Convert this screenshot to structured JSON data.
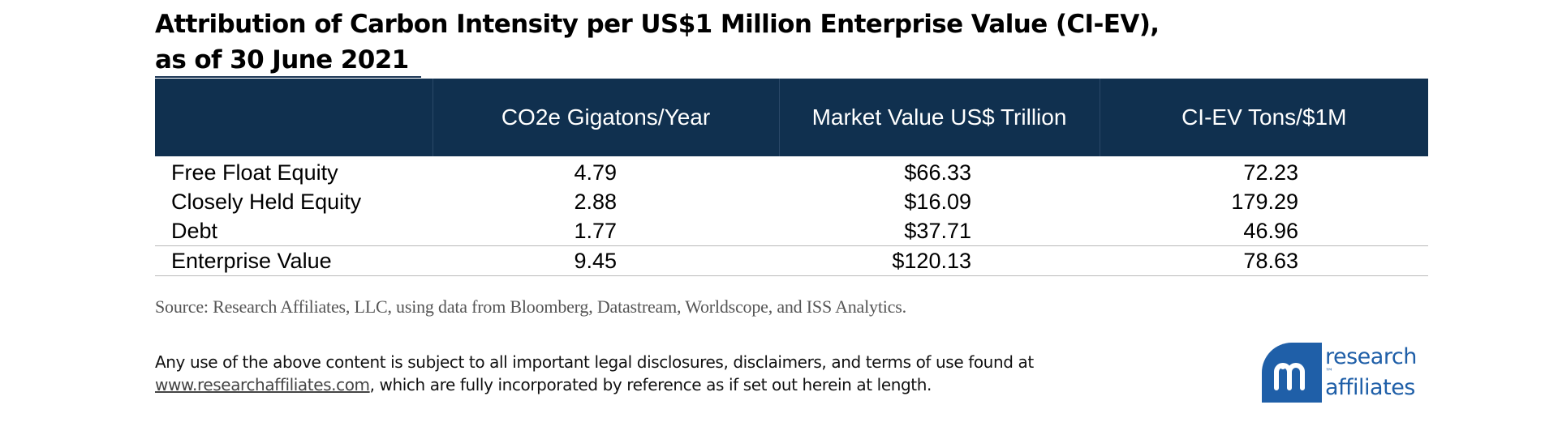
{
  "title": {
    "line1": "Attribution of Carbon Intensity per US$1 Million Enterprise Value (CI-EV),",
    "line2": "as of 30 June 2021"
  },
  "table": {
    "headers": [
      "",
      "CO2e Gigatons/Year",
      "Market Value US$ Trillion",
      "CI-EV Tons/$1M"
    ],
    "rows": [
      {
        "label": "Free Float Equity",
        "co2e": "4.79",
        "market_value": "$66.33",
        "ci_ev": "72.23"
      },
      {
        "label": "Closely Held Equity",
        "co2e": "2.88",
        "market_value": "$16.09",
        "ci_ev": "179.29"
      },
      {
        "label": "Debt",
        "co2e": "1.77",
        "market_value": "$37.71",
        "ci_ev": "46.96"
      },
      {
        "label": "Enterprise Value",
        "co2e": "9.45",
        "market_value": "$120.13",
        "ci_ev": "78.63"
      }
    ]
  },
  "source": "Source: Research Affiliates, LLC, using data from Bloomberg, Datastream, Worldscope, and ISS Analytics.",
  "disclaimer": {
    "line1": "Any use of the above content is subject to all important legal disclosures, disclaimers, and terms of use found at",
    "link": "www.researchaffiliates.com",
    "line2_rest": ", which are fully incorporated by reference as if set out herein at length."
  },
  "logo": {
    "word1": "research",
    "trademark": "™",
    "word2": "affiliates",
    "brand_color": "#1f5fa8"
  },
  "colors": {
    "header_bg": "#10304f",
    "header_text": "#ffffff",
    "rule": "#b9b9b9"
  }
}
